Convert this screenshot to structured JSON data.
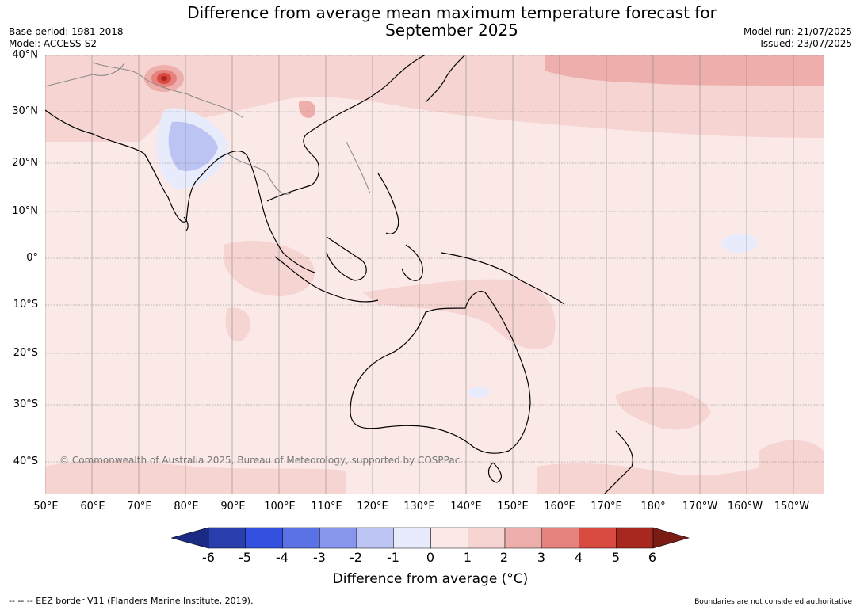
{
  "header": {
    "title_line1": "Difference from average mean maximum temperature forecast for",
    "title_line2": "September 2025",
    "base_period": "Base period: 1981-2018",
    "model": "Model: ACCESS-S2",
    "model_run": "Model run: 21/07/2025",
    "issued": "Issued: 23/07/2025"
  },
  "map": {
    "copyright": "© Commonwealth of Australia 2025, Bureau of Meteorology, supported by COSPPac",
    "lat_labels": [
      "40°N",
      "30°N",
      "20°N",
      "10°N",
      "0°",
      "10°S",
      "20°S",
      "30°S",
      "40°S"
    ],
    "lon_labels": [
      "50°E",
      "60°E",
      "70°E",
      "80°E",
      "90°E",
      "100°E",
      "110°E",
      "120°E",
      "130°E",
      "140°E",
      "150°E",
      "160°E",
      "170°E",
      "180°",
      "170°W",
      "160°W",
      "150°W"
    ],
    "background_color": "#fbe9e7",
    "land_color": "#fbe9e7",
    "coast_color": "#000000",
    "border_color": "#888888"
  },
  "colorbar": {
    "label": "Difference from average (°C)",
    "ticks": [
      "-6",
      "-5",
      "-4",
      "-3",
      "-2",
      "-1",
      "0",
      "1",
      "2",
      "3",
      "4",
      "5",
      "6"
    ],
    "colors": [
      "#1b2a85",
      "#2a3ead",
      "#3350e0",
      "#5b72e6",
      "#8796ec",
      "#bcc4f4",
      "#e8ebfb",
      "#fbe9e7",
      "#f6d4d2",
      "#eeaeab",
      "#e5827d",
      "#d94a40",
      "#a8281f",
      "#7a1b14"
    ]
  },
  "footer": {
    "eez_note": "--  --  -- EEZ border V11 (Flanders Marine Institute, 2019).",
    "disclaimer": "Boundaries are not considered authoritative"
  }
}
